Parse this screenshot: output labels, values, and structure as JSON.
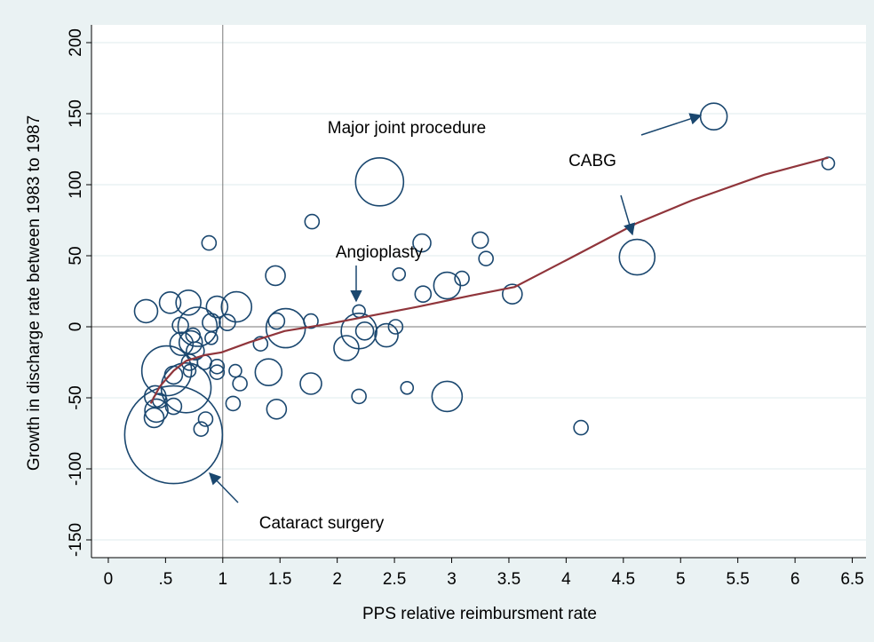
{
  "chart_data": {
    "type": "scatter",
    "xlabel": "PPS relative reimbursment rate",
    "ylabel": "Growth in discharge rate between 1983 to 1987",
    "xlim": [
      -0.147,
      6.62
    ],
    "ylim": [
      -162.5,
      212.5
    ],
    "xticks": [
      0,
      {
        "value": 0.5,
        "label": ".5"
      },
      1,
      1.5,
      2,
      2.5,
      3,
      3.5,
      4,
      4.5,
      5,
      5.5,
      6,
      6.5
    ],
    "yticks": [
      -150,
      -100,
      -50,
      0,
      50,
      100,
      150,
      200
    ],
    "grid": true,
    "xline": 1,
    "yline": 0,
    "color": "#1a476f",
    "x": [
      0.57,
      2.37,
      5.29,
      6.29,
      4.62,
      4.13,
      3.53,
      2.96,
      2.96,
      3.09,
      3.25,
      3.3,
      2.74,
      2.75,
      2.54,
      2.51,
      2.43,
      2.61,
      2.19,
      2.19,
      2.24,
      2.08,
      2.19,
      1.78,
      1.77,
      1.77,
      1.55,
      1.47,
      1.46,
      1.4,
      1.47,
      1.33,
      1.12,
      1.04,
      0.95,
      0.9,
      0.88,
      0.9,
      0.95,
      0.95,
      1.11,
      1.15,
      1.09,
      0.85,
      0.81,
      0.78,
      0.7,
      0.51,
      0.68,
      0.33,
      0.54,
      0.63,
      0.72,
      0.74,
      0.76,
      0.64,
      0.84,
      0.41,
      0.4,
      0.57,
      0.42,
      0.57,
      0.71,
      0.71,
      0.45
    ],
    "y": [
      -76,
      102,
      148,
      115,
      49,
      -71,
      23,
      -49,
      29,
      34,
      61,
      48,
      59,
      23,
      37,
      0,
      -6,
      -43,
      11,
      -3,
      -3,
      -15,
      -49,
      74,
      4,
      -40,
      -1,
      4,
      36,
      -32,
      -58,
      -12,
      14,
      3,
      14,
      3,
      59,
      -8,
      -28,
      -32,
      -31,
      -40,
      -54,
      -65,
      -72,
      0,
      17,
      -31,
      -43,
      11,
      17,
      1,
      -11,
      -6,
      -17,
      -12,
      -25,
      -49,
      -64,
      -34,
      -59,
      -56,
      -25,
      -31,
      -52
    ],
    "sizes": [
      3025,
      729,
      225,
      49,
      400,
      64,
      121,
      289,
      225,
      64,
      81,
      64,
      100,
      81,
      49,
      64,
      169,
      49,
      49,
      400,
      100,
      196,
      64,
      64,
      64,
      144,
      484,
      81,
      121,
      225,
      121,
      64,
      289,
      81,
      144,
      100,
      64,
      49,
      64,
      64,
      49,
      64,
      64,
      64,
      64,
      484,
      196,
      784,
      784,
      169,
      144,
      81,
      169,
      64,
      100,
      169,
      64,
      144,
      121,
      100,
      169,
      81,
      81,
      49,
      64
    ],
    "fit": {
      "color": "#90353b",
      "x": [
        0.37,
        0.45,
        0.57,
        0.68,
        0.84,
        0.99,
        1.23,
        1.54,
        1.92,
        2.31,
        2.7,
        3.17,
        3.55,
        4.1,
        4.62,
        5.1,
        5.73,
        6.29
      ],
      "y": [
        -54,
        -42,
        -31,
        -24,
        -20,
        -18,
        -11,
        -3,
        2,
        8,
        14,
        22,
        28,
        51,
        73,
        89,
        107,
        119
      ]
    },
    "annotations": [
      "Major joint procedure",
      "CABG",
      "Angioplasty",
      "Cataract surgery"
    ]
  }
}
